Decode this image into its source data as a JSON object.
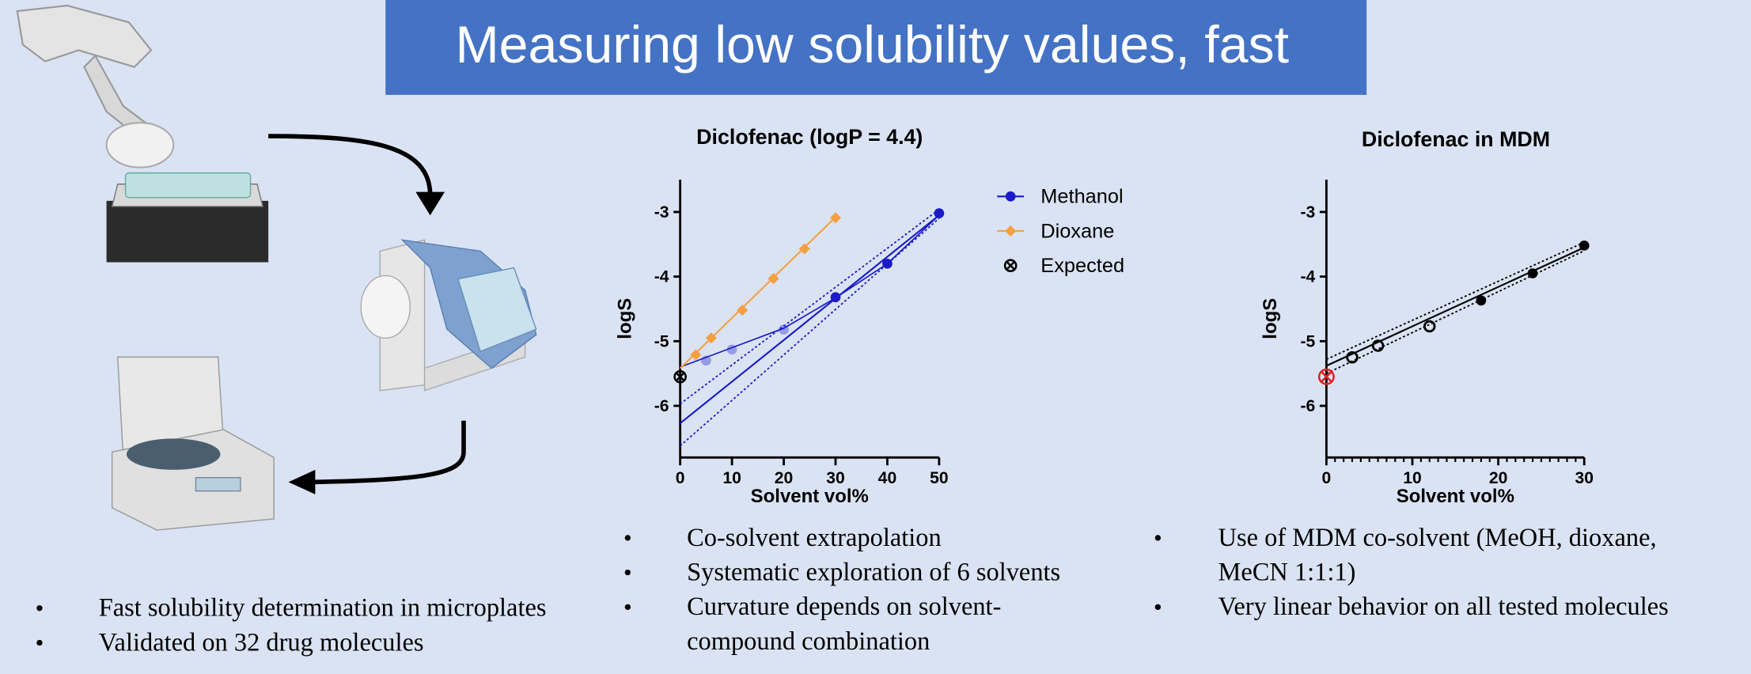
{
  "title": "Measuring low solubility values, fast",
  "chart_data": [
    {
      "type": "scatter",
      "title": "Diclofenac (logP = 4.4)",
      "xlabel": "Solvent vol%",
      "ylabel": "logS",
      "xlim": [
        0,
        50
      ],
      "ylim": [
        -6.8,
        -2.5
      ],
      "xticks": [
        0,
        10,
        20,
        30,
        40,
        50
      ],
      "yticks": [
        -3,
        -4,
        -5,
        -6
      ],
      "legend": "right",
      "series": [
        {
          "name": "Methanol",
          "color": "#1a1ac8",
          "marker": "filled",
          "x": [
            5,
            10,
            20,
            30,
            40,
            50
          ],
          "values": [
            -5.3,
            -5.13,
            -4.82,
            -4.32,
            -3.8,
            -3.02
          ],
          "faded": [
            true,
            true,
            true,
            false,
            false,
            false
          ],
          "curve": {
            "x": [
              0,
              5,
              10,
              20,
              30,
              40,
              50
            ],
            "values": [
              -5.4,
              -5.25,
              -5.1,
              -4.8,
              -4.33,
              -3.8,
              -3.05
            ]
          },
          "fit": {
            "x": [
              0,
              50
            ],
            "values": [
              -6.27,
              -3.05
            ],
            "lower": [
              -6.62,
              -3.1
            ],
            "upper": [
              -5.97,
              -2.96
            ]
          }
        },
        {
          "name": "Dioxane",
          "color": "#f5a040",
          "marker": "diamond",
          "x": [
            3,
            6,
            12,
            18,
            24,
            30
          ],
          "values": [
            -5.21,
            -4.95,
            -4.52,
            -4.03,
            -3.57,
            -3.09
          ],
          "faded": [
            false,
            false,
            false,
            false,
            false,
            false
          ],
          "fit": {
            "x": [
              0,
              30
            ],
            "values": [
              -5.42,
              -3.08
            ]
          }
        },
        {
          "name": "Expected",
          "color": "#000000",
          "marker": "cross",
          "x": [
            0
          ],
          "values": [
            -5.55
          ],
          "faded": [
            false
          ]
        }
      ]
    },
    {
      "type": "scatter",
      "title": "Diclofenac in MDM",
      "xlabel": "Solvent vol%",
      "ylabel": "logS",
      "xlim": [
        0,
        30
      ],
      "ylim": [
        -6.8,
        -2.5
      ],
      "xticks": [
        0,
        10,
        20,
        30
      ],
      "yticks": [
        -3,
        -4,
        -5,
        -6
      ],
      "minor_xtick_step": 1,
      "series": [
        {
          "color": "#000000",
          "marker": "filled",
          "x": [
            3,
            6,
            12,
            18,
            24,
            30
          ],
          "values": [
            -5.25,
            -5.07,
            -4.77,
            -4.37,
            -3.95,
            -3.52
          ],
          "open": [
            true,
            true,
            true,
            false,
            false,
            false
          ],
          "fit": {
            "x": [
              0,
              30
            ],
            "values": [
              -5.38,
              -3.55
            ],
            "lower": [
              -5.5,
              -3.6
            ],
            "upper": [
              -5.28,
              -3.47
            ]
          }
        },
        {
          "color": "#e02020",
          "marker": "cross",
          "x": [
            0
          ],
          "values": [
            -5.55
          ],
          "faded": [
            false
          ]
        }
      ]
    }
  ],
  "bullets": {
    "left": [
      [
        "Fast solubility determination in microplates"
      ],
      [
        "Validated on 32 drug molecules"
      ]
    ],
    "middle": [
      [
        "Co-solvent extrapolation"
      ],
      [
        "Systematic exploration of 6 solvents"
      ],
      [
        "Curvature depends on solvent-",
        "compound combination"
      ]
    ],
    "right": [
      [
        "Use of MDM co-solvent (MeOH, dioxane,",
        "MeCN 1:1:1)"
      ],
      [
        "Very linear behavior on all tested molecules"
      ]
    ]
  }
}
